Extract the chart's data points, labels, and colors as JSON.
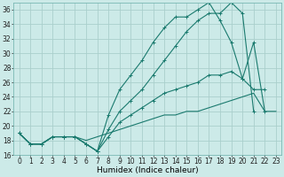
{
  "xlabel": "Humidex (Indice chaleur)",
  "background_color": "#cceae8",
  "grid_color": "#aacfcc",
  "line_color": "#1a7a6e",
  "xlim": [
    -0.5,
    23.5
  ],
  "ylim": [
    16,
    37
  ],
  "xticks": [
    0,
    1,
    2,
    3,
    4,
    5,
    6,
    7,
    8,
    9,
    10,
    11,
    12,
    13,
    14,
    15,
    16,
    17,
    18,
    19,
    20,
    21,
    22,
    23
  ],
  "yticks": [
    16,
    18,
    20,
    22,
    24,
    26,
    28,
    30,
    32,
    34,
    36
  ],
  "lines": [
    {
      "x": [
        0,
        1,
        2,
        3,
        4,
        5,
        6,
        7,
        8,
        9,
        10,
        11,
        12,
        13,
        14,
        15,
        16,
        17,
        18,
        19,
        20,
        21,
        22
      ],
      "y": [
        19,
        17.5,
        17.5,
        18.5,
        18.5,
        18.5,
        17.5,
        16.5,
        21.5,
        25,
        27,
        29,
        31.5,
        33.5,
        35,
        35,
        36,
        37,
        34.5,
        31.5,
        26.5,
        31.5,
        22
      ],
      "marker": "+"
    },
    {
      "x": [
        0,
        1,
        2,
        3,
        4,
        5,
        6,
        7,
        8,
        9,
        10,
        11,
        12,
        13,
        14,
        15,
        16,
        17,
        18,
        19,
        20,
        21
      ],
      "y": [
        19,
        17.5,
        17.5,
        18.5,
        18.5,
        18.5,
        17.5,
        16.5,
        19.5,
        22,
        23.5,
        25,
        27,
        29,
        31,
        33,
        34.5,
        35.5,
        35.5,
        37,
        35.5,
        22
      ],
      "marker": "+"
    },
    {
      "x": [
        0,
        1,
        2,
        3,
        4,
        5,
        6,
        7,
        8,
        9,
        10,
        11,
        12,
        13,
        14,
        15,
        16,
        17,
        18,
        19,
        20,
        21,
        22
      ],
      "y": [
        19,
        17.5,
        17.5,
        18.5,
        18.5,
        18.5,
        17.5,
        16.5,
        18.5,
        20.5,
        21.5,
        22.5,
        23.5,
        24.5,
        25,
        25.5,
        26,
        27,
        27,
        27.5,
        26.5,
        25,
        25
      ],
      "marker": "+"
    },
    {
      "x": [
        0,
        1,
        2,
        3,
        4,
        5,
        6,
        7,
        8,
        9,
        10,
        11,
        12,
        13,
        14,
        15,
        16,
        17,
        18,
        19,
        20,
        21,
        22,
        23
      ],
      "y": [
        19,
        17.5,
        17.5,
        18.5,
        18.5,
        18.5,
        18,
        18.5,
        19,
        19.5,
        20,
        20.5,
        21,
        21.5,
        21.5,
        22,
        22,
        22.5,
        23,
        23.5,
        24,
        24.5,
        22,
        22
      ],
      "marker": null
    }
  ]
}
